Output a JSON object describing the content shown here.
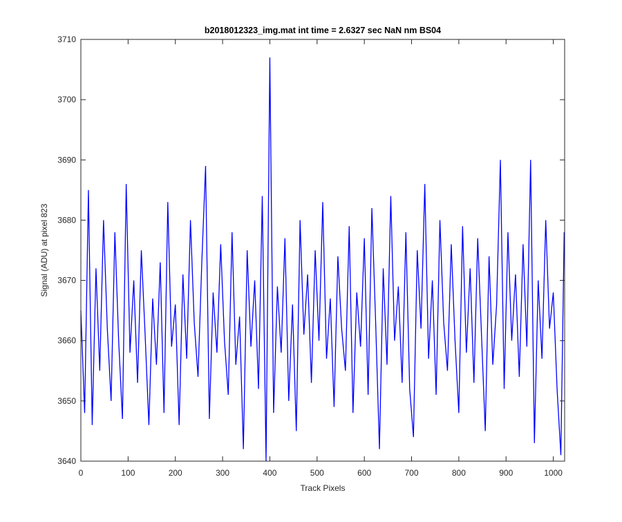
{
  "chart_data": {
    "type": "line",
    "title": "b2018012323_img.mat int time = 2.6327 sec  NaN nm BS04",
    "xlabel": "Track Pixels",
    "ylabel": "Signal (ADU) at pixel 823",
    "color": "#0000ff",
    "xlim": [
      0,
      1024
    ],
    "ylim": [
      3640,
      3710
    ],
    "xticks": [
      0,
      100,
      200,
      300,
      400,
      500,
      600,
      700,
      800,
      900,
      1000
    ],
    "yticks": [
      3640,
      3650,
      3660,
      3670,
      3680,
      3690,
      3700,
      3710
    ],
    "x": [
      0,
      8,
      16,
      24,
      32,
      40,
      48,
      56,
      64,
      72,
      80,
      88,
      96,
      104,
      112,
      120,
      128,
      136,
      144,
      152,
      160,
      168,
      176,
      184,
      192,
      200,
      208,
      216,
      224,
      232,
      240,
      248,
      256,
      264,
      272,
      280,
      288,
      296,
      304,
      312,
      320,
      328,
      336,
      344,
      352,
      360,
      368,
      376,
      384,
      392,
      400,
      408,
      416,
      424,
      432,
      440,
      448,
      456,
      464,
      472,
      480,
      488,
      496,
      504,
      512,
      520,
      528,
      536,
      544,
      552,
      560,
      568,
      576,
      584,
      592,
      600,
      608,
      616,
      624,
      632,
      640,
      648,
      656,
      664,
      672,
      680,
      688,
      696,
      704,
      712,
      720,
      728,
      736,
      744,
      752,
      760,
      768,
      776,
      784,
      792,
      800,
      808,
      816,
      824,
      832,
      840,
      848,
      856,
      864,
      872,
      880,
      888,
      896,
      904,
      912,
      920,
      928,
      936,
      944,
      952,
      960,
      968,
      976,
      984,
      992,
      1000,
      1008,
      1016,
      1023
    ],
    "values": [
      3665,
      3648,
      3685,
      3646,
      3672,
      3655,
      3680,
      3662,
      3650,
      3678,
      3660,
      3647,
      3686,
      3658,
      3670,
      3653,
      3675,
      3661,
      3646,
      3667,
      3656,
      3673,
      3648,
      3683,
      3659,
      3666,
      3646,
      3671,
      3657,
      3680,
      3663,
      3654,
      3673,
      3689,
      3647,
      3668,
      3658,
      3676,
      3660,
      3651,
      3678,
      3656,
      3664,
      3642,
      3675,
      3659,
      3670,
      3652,
      3684,
      3640,
      3707,
      3648,
      3669,
      3658,
      3677,
      3650,
      3666,
      3645,
      3680,
      3661,
      3671,
      3653,
      3675,
      3660,
      3683,
      3657,
      3667,
      3649,
      3674,
      3662,
      3655,
      3679,
      3648,
      3668,
      3659,
      3677,
      3651,
      3682,
      3663,
      3642,
      3672,
      3656,
      3684,
      3660,
      3669,
      3653,
      3678,
      3652,
      3644,
      3675,
      3662,
      3686,
      3657,
      3670,
      3651,
      3680,
      3663,
      3655,
      3676,
      3660,
      3648,
      3679,
      3658,
      3672,
      3653,
      3677,
      3661,
      3645,
      3674,
      3656,
      3666,
      3690,
      3652,
      3678,
      3660,
      3671,
      3654,
      3676,
      3659,
      3690,
      3643,
      3670,
      3657,
      3680,
      3662,
      3668,
      3652,
      3641,
      3678
    ]
  }
}
